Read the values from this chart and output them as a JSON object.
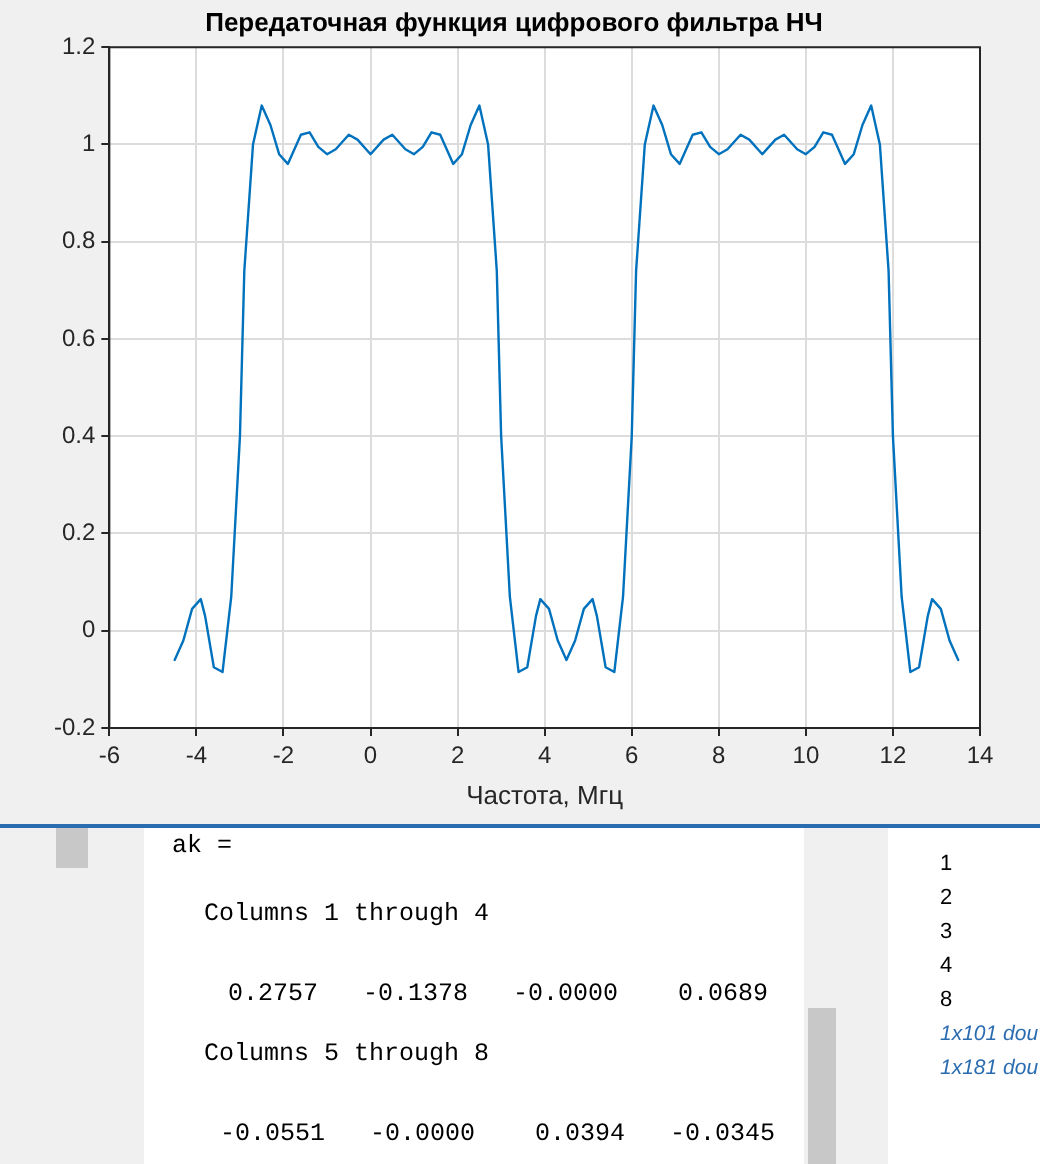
{
  "chart_data": {
    "type": "line",
    "title": "Передаточная функция цифрового фильтра НЧ",
    "xlabel": "Частота, Мгц",
    "x": [
      -4.5,
      -4.3,
      -4.1,
      -3.9,
      -3.8,
      -3.6,
      -3.4,
      -3.2,
      -3.0,
      -2.9,
      -2.7,
      -2.5,
      -2.3,
      -2.1,
      -1.9,
      -1.8,
      -1.6,
      -1.4,
      -1.2,
      -1.0,
      -0.8,
      -0.5,
      -0.3,
      0,
      0.3,
      0.5,
      0.8,
      1.0,
      1.2,
      1.4,
      1.6,
      1.8,
      1.9,
      2.1,
      2.3,
      2.5,
      2.7,
      2.9,
      3.0,
      3.2,
      3.4,
      3.6,
      3.8,
      3.9,
      4.1,
      4.3,
      4.5,
      4.7,
      4.9,
      5.1,
      5.2,
      5.4,
      5.6,
      5.8,
      6.0,
      6.1,
      6.3,
      6.5,
      6.7,
      6.9,
      7.1,
      7.2,
      7.4,
      7.6,
      7.8,
      8.0,
      8.2,
      8.5,
      8.7,
      9.0,
      9.3,
      9.5,
      9.8,
      10.0,
      10.2,
      10.4,
      10.6,
      10.8,
      10.9,
      11.1,
      11.3,
      11.5,
      11.7,
      11.9,
      12.0,
      12.2,
      12.4,
      12.6,
      12.8,
      12.9,
      13.1,
      13.3,
      13.5
    ],
    "series": [
      {
        "color": "#0072bd",
        "values": [
          -0.06,
          -0.02,
          0.045,
          0.065,
          0.03,
          -0.075,
          -0.085,
          0.07,
          0.4,
          0.74,
          1.0,
          1.08,
          1.04,
          0.98,
          0.96,
          0.98,
          1.02,
          1.025,
          0.995,
          0.98,
          0.99,
          1.02,
          1.01,
          0.98,
          1.01,
          1.02,
          0.99,
          0.98,
          0.995,
          1.025,
          1.02,
          0.98,
          0.96,
          0.98,
          1.04,
          1.08,
          1.0,
          0.74,
          0.4,
          0.07,
          -0.085,
          -0.075,
          0.03,
          0.065,
          0.045,
          -0.02,
          -0.06,
          -0.02,
          0.045,
          0.065,
          0.03,
          -0.075,
          -0.085,
          0.07,
          0.4,
          0.74,
          1.0,
          1.08,
          1.04,
          0.98,
          0.96,
          0.98,
          1.02,
          1.025,
          0.995,
          0.98,
          0.99,
          1.02,
          1.01,
          0.98,
          1.01,
          1.02,
          0.99,
          0.98,
          0.995,
          1.025,
          1.02,
          0.98,
          0.96,
          0.98,
          1.04,
          1.08,
          1.0,
          0.74,
          0.4,
          0.07,
          -0.085,
          -0.075,
          0.03,
          0.065,
          0.045,
          -0.02,
          -0.06
        ]
      }
    ],
    "xlim": [
      -6,
      14
    ],
    "xticks": [
      -6,
      -4,
      -2,
      0,
      2,
      4,
      6,
      8,
      10,
      12,
      14
    ],
    "ylim": [
      -0.2,
      1.2
    ],
    "yticks": [
      -0.2,
      0,
      0.2,
      0.4,
      0.6,
      0.8,
      1,
      1.2
    ],
    "grid": true,
    "legend": false,
    "marker": "none",
    "line_style": "solid",
    "annotations": [
      "ak =",
      "Columns 1 through 4",
      "0.2757   -0.1378   -0.0000    0.0689",
      "Columns 5 through 8",
      "-0.0551   -0.0000    0.0394   -0.0345",
      "1",
      "2",
      "3",
      "4",
      "8",
      "1x101 dou",
      "1x181 dou"
    ]
  }
}
